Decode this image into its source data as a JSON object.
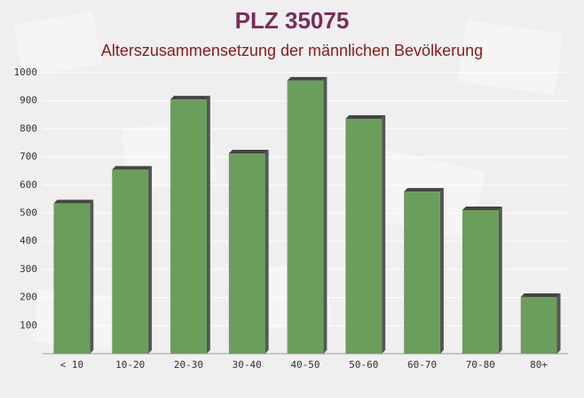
{
  "chart_data": {
    "type": "bar",
    "title": "PLZ 35075",
    "subtitle": "Alterszusammensetzung der männlichen Bevölkerung",
    "categories": [
      "< 10",
      "10-20",
      "20-30",
      "30-40",
      "40-50",
      "50-60",
      "60-70",
      "70-80",
      "80+"
    ],
    "values": [
      535,
      655,
      905,
      713,
      972,
      836,
      577,
      511,
      202
    ],
    "color": "#6a9f5b",
    "ylim": [
      0,
      1000
    ],
    "yticks": [
      100,
      200,
      300,
      400,
      500,
      600,
      700,
      800,
      900,
      1000
    ],
    "grid": true
  }
}
